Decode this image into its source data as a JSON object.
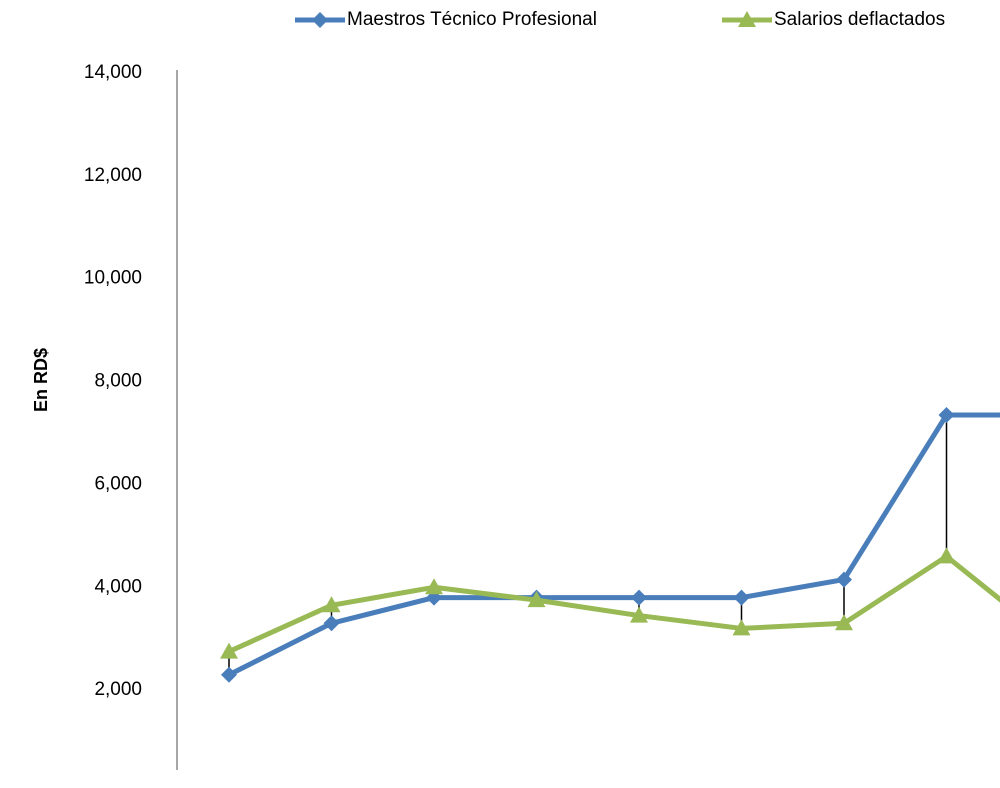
{
  "chart_data": {
    "type": "line",
    "y_label": "En RD$",
    "categories": [
      null,
      null,
      null,
      null,
      null,
      null,
      null,
      null,
      null
    ],
    "series": [
      {
        "name": "Maestros Técnico Profesional",
        "color": "#4a7ebb",
        "marker": "diamond",
        "values": [
          2300,
          3300,
          3800,
          3800,
          3800,
          3800,
          4150,
          7350,
          7350
        ]
      },
      {
        "name": "Salarios deflactados",
        "color": "#98b954",
        "marker": "triangle",
        "values": [
          2750,
          3650,
          4000,
          3750,
          3450,
          3200,
          3300,
          4600,
          3000
        ]
      }
    ],
    "ylim": [
      0,
      14000
    ],
    "yticks": [
      {
        "value": 2000,
        "label": "2,000"
      },
      {
        "value": 4000,
        "label": "4,000"
      },
      {
        "value": 6000,
        "label": "6,000"
      },
      {
        "value": 8000,
        "label": "8,000"
      },
      {
        "value": 10000,
        "label": "10,000"
      },
      {
        "value": 12000,
        "label": "12,000"
      },
      {
        "value": 14000,
        "label": "14,000"
      }
    ],
    "high_low_lines": true,
    "legend": "top"
  }
}
